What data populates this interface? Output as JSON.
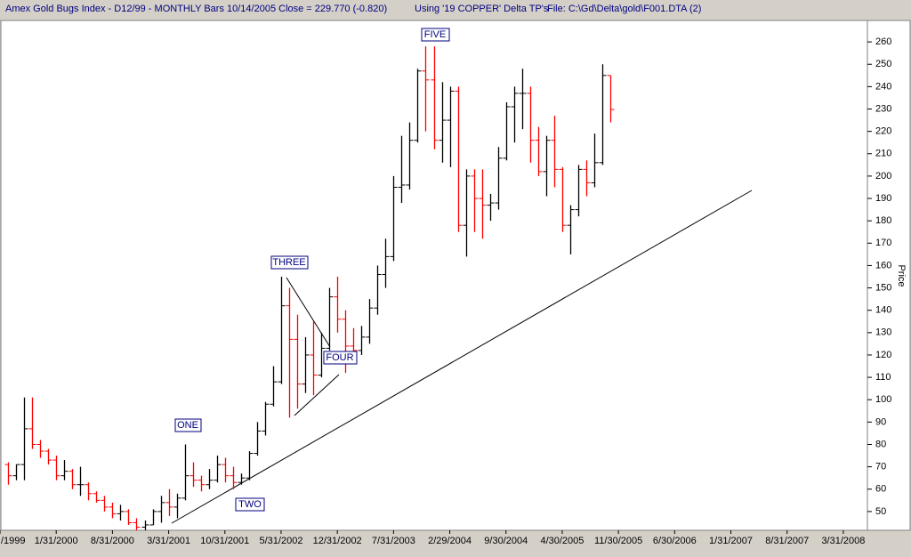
{
  "chart_data": {
    "type": "ohlc",
    "title": "Amex Gold Bugs Index - D12/99 - MONTHLY Bars 10/14/2005 Close = 229.770 (-0.820)",
    "subtitle": "Using '19 COPPER' Delta TP's",
    "file": "File: C:\\Gd\\Delta\\gold\\F001.DTA (2)",
    "y_label": "Price",
    "annotations": [
      "ONE",
      "TWO",
      "THREE",
      "FOUR",
      "FIVE"
    ],
    "up_color": "#000000",
    "down_color": "#ff0000",
    "x": [
      "7/31/1999",
      "8/31/1999",
      "9/30/1999",
      "10/31/1999",
      "11/30/1999",
      "12/31/1999",
      "1/31/2000",
      "2/29/2000",
      "3/31/2000",
      "4/30/2000",
      "5/31/2000",
      "6/30/2000",
      "7/31/2000",
      "8/31/2000",
      "9/30/2000",
      "10/31/2000",
      "11/30/2000",
      "12/31/2000",
      "1/31/2001",
      "2/28/2001",
      "3/31/2001",
      "4/30/2001",
      "5/31/2001",
      "6/30/2001",
      "7/31/2001",
      "8/31/2001",
      "9/30/2001",
      "10/31/2001",
      "11/30/2001",
      "12/31/2001",
      "1/31/2002",
      "2/28/2002",
      "3/31/2002",
      "4/30/2002",
      "5/31/2002",
      "6/30/2002",
      "7/31/2002",
      "8/31/2002",
      "9/30/2002",
      "10/31/2002",
      "11/30/2002",
      "12/31/2002",
      "1/31/2003",
      "2/28/2003",
      "3/31/2003",
      "4/30/2003",
      "5/31/2003",
      "6/30/2003",
      "7/31/2003",
      "8/31/2003",
      "9/30/2003",
      "10/31/2003",
      "11/30/2003",
      "12/31/2003",
      "1/31/2004",
      "2/29/2004",
      "3/31/2004",
      "4/30/2004",
      "5/31/2004",
      "6/30/2004",
      "7/31/2004",
      "8/31/2004",
      "9/30/2004",
      "10/31/2004",
      "11/30/2004",
      "12/31/2004",
      "1/31/2005",
      "2/28/2005",
      "3/31/2005",
      "4/30/2005",
      "5/31/2005",
      "6/30/2005",
      "7/31/2005",
      "8/31/2005",
      "9/30/2005",
      "10/31/2005"
    ],
    "open": [
      71,
      66,
      71,
      87,
      80,
      77,
      73,
      66,
      68,
      62,
      62,
      58,
      55,
      52,
      49,
      50,
      45,
      43,
      44,
      50,
      54,
      52,
      56,
      66,
      64,
      62,
      64,
      71,
      66,
      63,
      65,
      76,
      86,
      98,
      108,
      142,
      127,
      107,
      120,
      111,
      123,
      146,
      136,
      124,
      122,
      128,
      141,
      156,
      164,
      195,
      196,
      216,
      247,
      243,
      216,
      225,
      238,
      178,
      200,
      190,
      187,
      188,
      208,
      231,
      237,
      237,
      216,
      202,
      216,
      203,
      178,
      185,
      203,
      197,
      206,
      245
    ],
    "high": [
      72,
      71,
      101,
      101,
      82,
      78,
      75,
      73,
      69,
      70,
      63,
      59,
      57,
      54,
      53,
      51,
      47,
      46,
      51,
      57,
      60,
      58,
      80,
      72,
      66,
      69,
      75,
      74,
      70,
      67,
      77,
      90,
      99,
      115,
      155,
      150,
      138,
      128,
      135,
      130,
      150,
      155,
      140,
      132,
      133,
      145,
      160,
      172,
      200,
      218,
      224,
      248,
      258,
      258,
      242,
      240,
      240,
      203,
      203,
      203,
      192,
      213,
      233,
      240,
      248,
      240,
      222,
      218,
      227,
      204,
      187,
      205,
      207,
      219,
      250,
      245
    ],
    "low": [
      62,
      64,
      64,
      78,
      74,
      71,
      64,
      64,
      60,
      57,
      55,
      54,
      50,
      47,
      46,
      44,
      41,
      40,
      44,
      45,
      48,
      47,
      55,
      61,
      59,
      60,
      63,
      63,
      60,
      62,
      64,
      75,
      84,
      97,
      107,
      92,
      96,
      103,
      102,
      110,
      122,
      130,
      112,
      116,
      120,
      125,
      138,
      150,
      162,
      188,
      194,
      215,
      220,
      212,
      206,
      204,
      175,
      164,
      175,
      172,
      180,
      185,
      207,
      215,
      221,
      206,
      200,
      191,
      195,
      175,
      165,
      182,
      191,
      195,
      205,
      224
    ],
    "close": [
      66,
      71,
      87,
      80,
      77,
      73,
      66,
      68,
      62,
      62,
      58,
      55,
      52,
      49,
      50,
      45,
      43,
      44,
      50,
      54,
      52,
      56,
      66,
      64,
      62,
      64,
      71,
      66,
      63,
      65,
      76,
      86,
      98,
      108,
      142,
      127,
      107,
      120,
      111,
      123,
      146,
      136,
      124,
      122,
      128,
      141,
      156,
      164,
      195,
      196,
      216,
      247,
      243,
      216,
      225,
      238,
      178,
      200,
      190,
      187,
      188,
      208,
      231,
      237,
      237,
      216,
      202,
      216,
      203,
      178,
      185,
      203,
      197,
      206,
      245,
      229.77
    ],
    "xlim": [
      "6/30/1999",
      "6/30/2008"
    ],
    "xticks": [
      {
        "value": "6/30/1999",
        "label": "/1999"
      },
      {
        "value": "1/31/2000",
        "label": "1/31/2000"
      },
      {
        "value": "8/31/2000",
        "label": "8/31/2000"
      },
      {
        "value": "3/31/2001",
        "label": "3/31/2001"
      },
      {
        "value": "10/31/2001",
        "label": "10/31/2001"
      },
      {
        "value": "5/31/2002",
        "label": "5/31/2002"
      },
      {
        "value": "12/31/2002",
        "label": "12/31/2002"
      },
      {
        "value": "7/31/2003",
        "label": "7/31/2003"
      },
      {
        "value": "2/29/2004",
        "label": "2/29/2004"
      },
      {
        "value": "9/30/2004",
        "label": "9/30/2004"
      },
      {
        "value": "4/30/2005",
        "label": "4/30/2005"
      },
      {
        "value": "11/30/2005",
        "label": "11/30/2005"
      },
      {
        "value": "6/30/2006",
        "label": "6/30/2006"
      },
      {
        "value": "1/31/2007",
        "label": "1/31/2007"
      },
      {
        "value": "8/31/2007",
        "label": "8/31/2007"
      },
      {
        "value": "3/31/2008",
        "label": "3/31/2008"
      }
    ],
    "ylim": [
      41.6,
      267.6
    ],
    "yticks": [
      50,
      60,
      70,
      80,
      90,
      100,
      110,
      120,
      130,
      140,
      150,
      160,
      170,
      180,
      190,
      200,
      210,
      220,
      230,
      240,
      250,
      260
    ],
    "grid": false
  }
}
